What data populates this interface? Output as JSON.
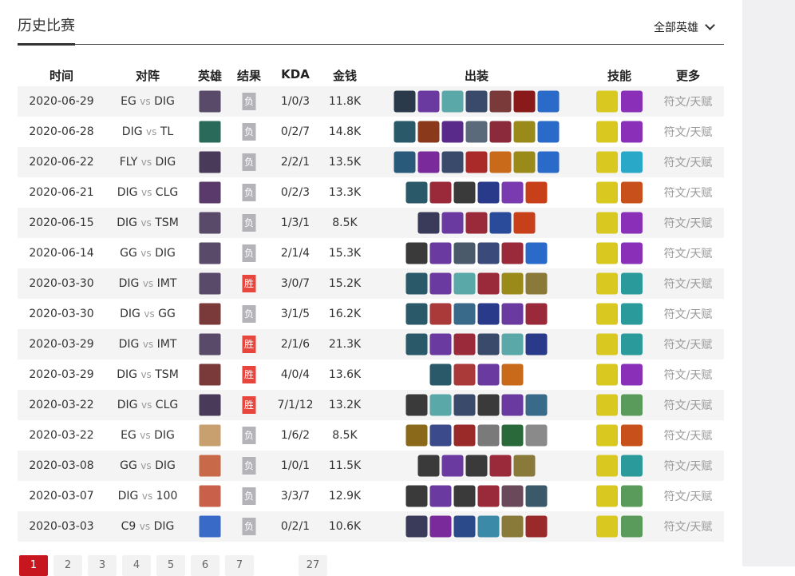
{
  "header": {
    "title": "历史比赛",
    "filter": "全部英雄"
  },
  "columns": [
    "时间",
    "对阵",
    "英雄",
    "结果",
    "KDA",
    "金钱",
    "出装",
    "技能",
    "更多"
  ],
  "colors": {
    "loss": "#b4b4b8",
    "win": "#e8453c",
    "active_page": "#c8161e"
  },
  "rows": [
    {
      "date": "2020-06-29",
      "t1": "EG",
      "vs": "vs",
      "t2": "DIG",
      "hero": "#5a4a6a",
      "result": "负",
      "kda": "1/0/3",
      "gold": "11.8K",
      "items": [
        "#2a3a4a",
        "#6a3aa0",
        "#5aa8a8",
        "#3a4a6a",
        "#7a3a3a",
        "#8a1a1a",
        "#2a6ac8"
      ],
      "skills": [
        "#d8c820",
        "#8a30b8"
      ],
      "more": "符文/天赋"
    },
    {
      "date": "2020-06-28",
      "t1": "DIG",
      "vs": "vs",
      "t2": "TL",
      "hero": "#2a6a5a",
      "result": "负",
      "kda": "0/2/7",
      "gold": "14.8K",
      "items": [
        "#2a5a6a",
        "#8a3a1a",
        "#5a2a8a",
        "#5a6a7a",
        "#8a2a3a",
        "#9a8a1a",
        "#2a6ac8"
      ],
      "skills": [
        "#d8c820",
        "#8a30b8"
      ],
      "more": "符文/天赋"
    },
    {
      "date": "2020-06-22",
      "t1": "FLY",
      "vs": "vs",
      "t2": "DIG",
      "hero": "#4a3a5a",
      "result": "负",
      "kda": "2/2/1",
      "gold": "13.5K",
      "items": [
        "#2a5a7a",
        "#7a2a9a",
        "#3a4a6a",
        "#aa2a2a",
        "#c86a1a",
        "#9a8a1a",
        "#2a6ac8"
      ],
      "skills": [
        "#d8c820",
        "#2aa8c8"
      ],
      "more": "符文/天赋"
    },
    {
      "date": "2020-06-21",
      "t1": "DIG",
      "vs": "vs",
      "t2": "CLG",
      "hero": "#5a3a6a",
      "result": "负",
      "kda": "0/2/3",
      "gold": "13.3K",
      "items": [
        "#2a5a6a",
        "#9a2a3a",
        "#3a3a3a",
        "#2a3a8a",
        "#7a3ab0",
        "#c8401a"
      ],
      "skills": [
        "#d8c820",
        "#c8501a"
      ],
      "more": "符文/天赋"
    },
    {
      "date": "2020-06-15",
      "t1": "DIG",
      "vs": "vs",
      "t2": "TSM",
      "hero": "#5a4a6a",
      "result": "负",
      "kda": "1/3/1",
      "gold": "8.5K",
      "items": [
        "#3a3a5a",
        "#6a3aa0",
        "#9a2a3a",
        "#2a4a9a",
        "#c8401a"
      ],
      "skills": [
        "#d8c820",
        "#8a30b8"
      ],
      "more": "符文/天赋"
    },
    {
      "date": "2020-06-14",
      "t1": "GG",
      "vs": "vs",
      "t2": "DIG",
      "hero": "#5a4a6a",
      "result": "负",
      "kda": "2/1/4",
      "gold": "15.3K",
      "items": [
        "#3a3a3a",
        "#6a3aa0",
        "#4a5a6a",
        "#3a4a7a",
        "#9a2a3a",
        "#2a6ac8"
      ],
      "skills": [
        "#d8c820",
        "#8a30b8"
      ],
      "more": "符文/天赋"
    },
    {
      "date": "2020-03-30",
      "t1": "DIG",
      "vs": "vs",
      "t2": "IMT",
      "hero": "#5a4a6a",
      "result": "胜",
      "kda": "3/0/7",
      "gold": "15.2K",
      "items": [
        "#2a5a6a",
        "#6a3aa0",
        "#5aa8a8",
        "#9a2a3a",
        "#9a8a1a",
        "#8a7a3a"
      ],
      "skills": [
        "#d8c820",
        "#2a9a9a"
      ],
      "more": "符文/天赋"
    },
    {
      "date": "2020-03-30",
      "t1": "DIG",
      "vs": "vs",
      "t2": "GG",
      "hero": "#7a3a3a",
      "result": "负",
      "kda": "3/1/5",
      "gold": "16.2K",
      "items": [
        "#2a5a6a",
        "#aa3a3a",
        "#3a6a8a",
        "#2a3a8a",
        "#6a3aa0",
        "#9a2a3a"
      ],
      "skills": [
        "#d8c820",
        "#2a9a9a"
      ],
      "more": "符文/天赋"
    },
    {
      "date": "2020-03-29",
      "t1": "DIG",
      "vs": "vs",
      "t2": "IMT",
      "hero": "#5a4a6a",
      "result": "胜",
      "kda": "2/1/6",
      "gold": "21.3K",
      "items": [
        "#2a5a6a",
        "#6a3aa0",
        "#9a2a3a",
        "#3a4a6a",
        "#5aa8a8",
        "#2a3a8a"
      ],
      "skills": [
        "#d8c820",
        "#2a9a9a"
      ],
      "more": "符文/天赋"
    },
    {
      "date": "2020-03-29",
      "t1": "DIG",
      "vs": "vs",
      "t2": "TSM",
      "hero": "#7a3a3a",
      "result": "胜",
      "kda": "4/0/4",
      "gold": "13.6K",
      "items": [
        "#2a5a6a",
        "#aa3a3a",
        "#6a3aa0",
        "#c86a1a"
      ],
      "skills": [
        "#d8c820",
        "#8a30b8"
      ],
      "more": "符文/天赋"
    },
    {
      "date": "2020-03-22",
      "t1": "DIG",
      "vs": "vs",
      "t2": "CLG",
      "hero": "#4a3a5a",
      "result": "胜",
      "kda": "7/1/12",
      "gold": "13.2K",
      "items": [
        "#3a3a3a",
        "#5aa8a8",
        "#3a4a6a",
        "#3a3a3a",
        "#6a3aa0",
        "#3a6a8a"
      ],
      "skills": [
        "#d8c820",
        "#5a9a5a"
      ],
      "more": "符文/天赋"
    },
    {
      "date": "2020-03-22",
      "t1": "EG",
      "vs": "vs",
      "t2": "DIG",
      "hero": "#c8a070",
      "result": "负",
      "kda": "1/6/2",
      "gold": "8.5K",
      "items": [
        "#8a6a1a",
        "#3a4a8a",
        "#9a2a2a",
        "#7a7a7a",
        "#2a6a3a",
        "#8a8a8a"
      ],
      "skills": [
        "#d8c820",
        "#c8501a"
      ],
      "more": "符文/天赋"
    },
    {
      "date": "2020-03-08",
      "t1": "GG",
      "vs": "vs",
      "t2": "DIG",
      "hero": "#c86a4a",
      "result": "负",
      "kda": "1/0/1",
      "gold": "11.5K",
      "items": [
        "#3a3a3a",
        "#6a3aa0",
        "#3a3a3a",
        "#9a2a3a",
        "#8a7a3a"
      ],
      "skills": [
        "#d8c820",
        "#2a9a9a"
      ],
      "more": "符文/天赋"
    },
    {
      "date": "2020-03-07",
      "t1": "DIG",
      "vs": "vs",
      "t2": "100",
      "hero": "#c8604a",
      "result": "负",
      "kda": "3/3/7",
      "gold": "12.9K",
      "items": [
        "#3a3a3a",
        "#6a3aa0",
        "#3a3a3a",
        "#9a2a3a",
        "#6a4a5a",
        "#3a5a6a"
      ],
      "skills": [
        "#d8c820",
        "#5a9a5a"
      ],
      "more": "符文/天赋"
    },
    {
      "date": "2020-03-03",
      "t1": "C9",
      "vs": "vs",
      "t2": "DIG",
      "hero": "#3a6ac8",
      "result": "负",
      "kda": "0/2/1",
      "gold": "10.6K",
      "items": [
        "#3a3a5a",
        "#7a2a9a",
        "#2a4a8a",
        "#3a8aa8",
        "#8a7a3a",
        "#9a2a2a"
      ],
      "skills": [
        "#d8c820",
        "#5a9a5a"
      ],
      "more": "符文/天赋"
    }
  ],
  "pagination": {
    "pages": [
      "1",
      "2",
      "3",
      "4",
      "5",
      "6",
      "7"
    ],
    "last": "27",
    "current": "1"
  }
}
